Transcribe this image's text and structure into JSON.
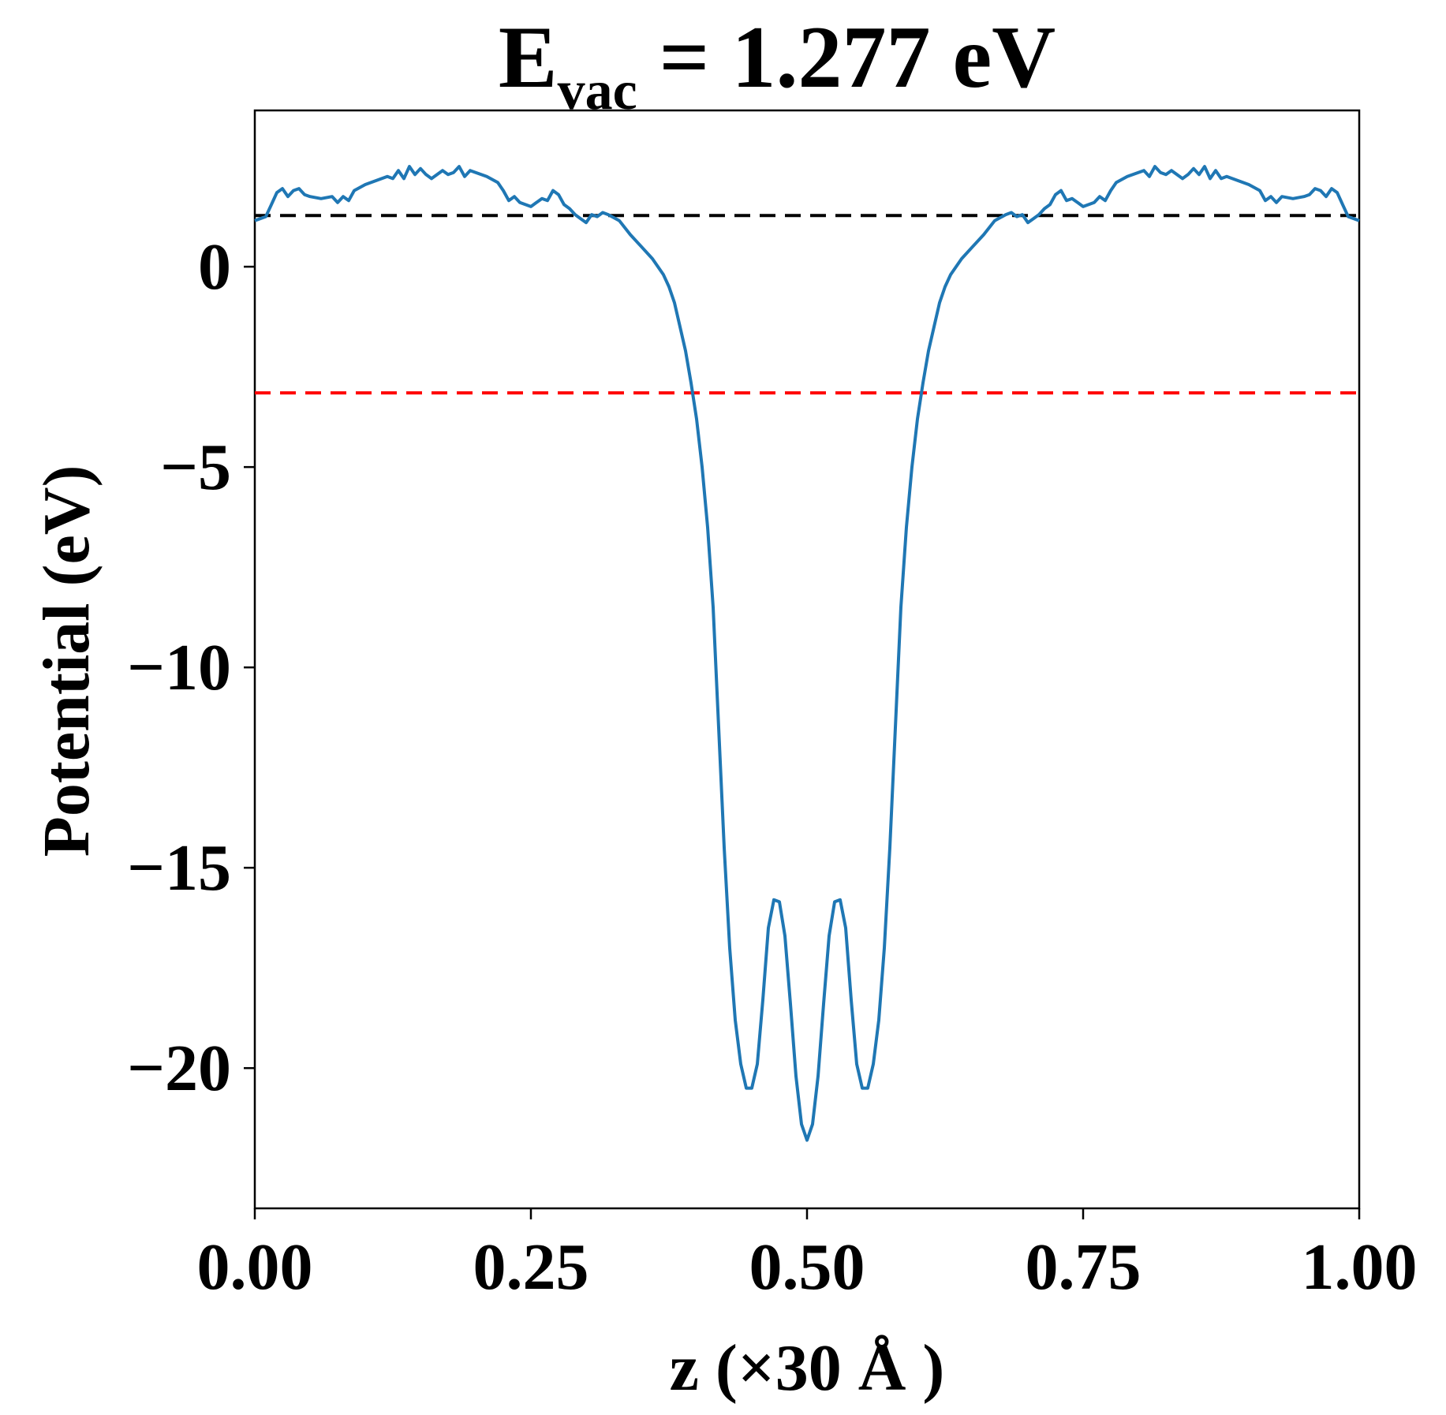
{
  "chart_data": {
    "type": "line",
    "title_main": "E",
    "title_sub": "vac",
    "title_rest": " = 1.277 eV",
    "xlabel": "z (×30 Å )",
    "ylabel": "Potential (eV)",
    "xlim": [
      0,
      1
    ],
    "ylim": [
      -23.5,
      3.9
    ],
    "x_ticks": [
      0,
      0.25,
      0.5,
      0.75,
      1.0
    ],
    "x_tick_labels": [
      "0.00",
      "0.25",
      "0.50",
      "0.75",
      "1.00"
    ],
    "y_ticks": [
      0,
      -5,
      -10,
      -15,
      -20
    ],
    "y_tick_labels": [
      "0",
      "−5",
      "−10",
      "−15",
      "−20"
    ],
    "grid": false,
    "reference_lines": [
      {
        "y": 1.277,
        "color": "#000000",
        "style": "dashed"
      },
      {
        "y": -3.15,
        "color": "#ff0000",
        "style": "dashed"
      }
    ],
    "series": [
      {
        "color": "#1f77b4",
        "points": [
          [
            0.0,
            1.15
          ],
          [
            0.01,
            1.25
          ],
          [
            0.015,
            1.55
          ],
          [
            0.02,
            1.85
          ],
          [
            0.025,
            1.95
          ],
          [
            0.03,
            1.75
          ],
          [
            0.035,
            1.9
          ],
          [
            0.04,
            1.95
          ],
          [
            0.045,
            1.8
          ],
          [
            0.05,
            1.75
          ],
          [
            0.06,
            1.7
          ],
          [
            0.07,
            1.75
          ],
          [
            0.075,
            1.6
          ],
          [
            0.08,
            1.75
          ],
          [
            0.085,
            1.65
          ],
          [
            0.09,
            1.9
          ],
          [
            0.1,
            2.05
          ],
          [
            0.11,
            2.15
          ],
          [
            0.12,
            2.25
          ],
          [
            0.125,
            2.2
          ],
          [
            0.13,
            2.4
          ],
          [
            0.135,
            2.2
          ],
          [
            0.14,
            2.5
          ],
          [
            0.145,
            2.3
          ],
          [
            0.15,
            2.45
          ],
          [
            0.155,
            2.3
          ],
          [
            0.16,
            2.2
          ],
          [
            0.17,
            2.4
          ],
          [
            0.175,
            2.3
          ],
          [
            0.18,
            2.35
          ],
          [
            0.185,
            2.5
          ],
          [
            0.19,
            2.25
          ],
          [
            0.195,
            2.4
          ],
          [
            0.2,
            2.35
          ],
          [
            0.21,
            2.25
          ],
          [
            0.22,
            2.1
          ],
          [
            0.225,
            1.9
          ],
          [
            0.23,
            1.65
          ],
          [
            0.235,
            1.75
          ],
          [
            0.24,
            1.6
          ],
          [
            0.25,
            1.5
          ],
          [
            0.255,
            1.6
          ],
          [
            0.26,
            1.7
          ],
          [
            0.265,
            1.65
          ],
          [
            0.27,
            1.9
          ],
          [
            0.275,
            1.8
          ],
          [
            0.28,
            1.55
          ],
          [
            0.285,
            1.45
          ],
          [
            0.29,
            1.3
          ],
          [
            0.295,
            1.2
          ],
          [
            0.3,
            1.1
          ],
          [
            0.305,
            1.3
          ],
          [
            0.31,
            1.25
          ],
          [
            0.315,
            1.35
          ],
          [
            0.32,
            1.3
          ],
          [
            0.33,
            1.15
          ],
          [
            0.34,
            0.8
          ],
          [
            0.35,
            0.5
          ],
          [
            0.36,
            0.2
          ],
          [
            0.37,
            -0.2
          ],
          [
            0.375,
            -0.5
          ],
          [
            0.38,
            -0.9
          ],
          [
            0.385,
            -1.5
          ],
          [
            0.39,
            -2.1
          ],
          [
            0.395,
            -2.9
          ],
          [
            0.4,
            -3.8
          ],
          [
            0.405,
            -5.0
          ],
          [
            0.41,
            -6.5
          ],
          [
            0.415,
            -8.5
          ],
          [
            0.42,
            -11.5
          ],
          [
            0.425,
            -14.5
          ],
          [
            0.43,
            -17.0
          ],
          [
            0.435,
            -18.8
          ],
          [
            0.44,
            -19.9
          ],
          [
            0.445,
            -20.5
          ],
          [
            0.45,
            -20.5
          ],
          [
            0.455,
            -19.9
          ],
          [
            0.46,
            -18.3
          ],
          [
            0.465,
            -16.5
          ],
          [
            0.47,
            -15.8
          ],
          [
            0.475,
            -15.85
          ],
          [
            0.48,
            -16.7
          ],
          [
            0.485,
            -18.4
          ],
          [
            0.49,
            -20.2
          ],
          [
            0.495,
            -21.4
          ],
          [
            0.5,
            -21.8
          ],
          [
            0.505,
            -21.4
          ],
          [
            0.51,
            -20.2
          ],
          [
            0.515,
            -18.4
          ],
          [
            0.52,
            -16.7
          ],
          [
            0.525,
            -15.85
          ],
          [
            0.53,
            -15.8
          ],
          [
            0.535,
            -16.5
          ],
          [
            0.54,
            -18.3
          ],
          [
            0.545,
            -19.9
          ],
          [
            0.55,
            -20.5
          ],
          [
            0.555,
            -20.5
          ],
          [
            0.56,
            -19.9
          ],
          [
            0.565,
            -18.8
          ],
          [
            0.57,
            -17.0
          ],
          [
            0.575,
            -14.5
          ],
          [
            0.58,
            -11.5
          ],
          [
            0.585,
            -8.5
          ],
          [
            0.59,
            -6.5
          ],
          [
            0.595,
            -5.0
          ],
          [
            0.6,
            -3.8
          ],
          [
            0.605,
            -2.9
          ],
          [
            0.61,
            -2.1
          ],
          [
            0.615,
            -1.5
          ],
          [
            0.62,
            -0.9
          ],
          [
            0.625,
            -0.5
          ],
          [
            0.63,
            -0.2
          ],
          [
            0.64,
            0.2
          ],
          [
            0.65,
            0.5
          ],
          [
            0.66,
            0.8
          ],
          [
            0.67,
            1.15
          ],
          [
            0.68,
            1.3
          ],
          [
            0.685,
            1.35
          ],
          [
            0.69,
            1.25
          ],
          [
            0.695,
            1.3
          ],
          [
            0.7,
            1.1
          ],
          [
            0.705,
            1.2
          ],
          [
            0.71,
            1.3
          ],
          [
            0.715,
            1.45
          ],
          [
            0.72,
            1.55
          ],
          [
            0.725,
            1.8
          ],
          [
            0.73,
            1.9
          ],
          [
            0.735,
            1.65
          ],
          [
            0.74,
            1.7
          ],
          [
            0.745,
            1.6
          ],
          [
            0.75,
            1.5
          ],
          [
            0.76,
            1.6
          ],
          [
            0.765,
            1.75
          ],
          [
            0.77,
            1.65
          ],
          [
            0.775,
            1.9
          ],
          [
            0.78,
            2.1
          ],
          [
            0.79,
            2.25
          ],
          [
            0.8,
            2.35
          ],
          [
            0.805,
            2.4
          ],
          [
            0.81,
            2.25
          ],
          [
            0.815,
            2.5
          ],
          [
            0.82,
            2.35
          ],
          [
            0.825,
            2.3
          ],
          [
            0.83,
            2.4
          ],
          [
            0.84,
            2.2
          ],
          [
            0.845,
            2.3
          ],
          [
            0.85,
            2.45
          ],
          [
            0.855,
            2.3
          ],
          [
            0.86,
            2.5
          ],
          [
            0.865,
            2.2
          ],
          [
            0.87,
            2.4
          ],
          [
            0.875,
            2.2
          ],
          [
            0.88,
            2.25
          ],
          [
            0.89,
            2.15
          ],
          [
            0.9,
            2.05
          ],
          [
            0.91,
            1.9
          ],
          [
            0.915,
            1.65
          ],
          [
            0.92,
            1.75
          ],
          [
            0.925,
            1.6
          ],
          [
            0.93,
            1.75
          ],
          [
            0.94,
            1.7
          ],
          [
            0.95,
            1.75
          ],
          [
            0.955,
            1.8
          ],
          [
            0.96,
            1.95
          ],
          [
            0.965,
            1.9
          ],
          [
            0.97,
            1.75
          ],
          [
            0.975,
            1.95
          ],
          [
            0.98,
            1.85
          ],
          [
            0.985,
            1.55
          ],
          [
            0.99,
            1.25
          ],
          [
            1.0,
            1.15
          ]
        ]
      }
    ]
  }
}
